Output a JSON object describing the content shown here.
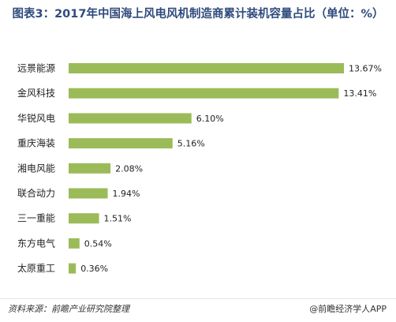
{
  "chart_data": {
    "type": "bar",
    "orientation": "horizontal",
    "title": "图表3：2017年中国海上风电风机制造商累计装机容量占比（单位：%）",
    "categories": [
      "远景能源",
      "金风科技",
      "华锐风电",
      "重庆海装",
      "湘电风能",
      "联合动力",
      "三一重能",
      "东方电气",
      "太原重工"
    ],
    "values": [
      13.67,
      13.41,
      6.1,
      5.16,
      2.08,
      1.94,
      1.51,
      0.54,
      0.36
    ],
    "value_labels": [
      "13.67%",
      "13.41%",
      "6.10%",
      "5.16%",
      "2.08%",
      "1.94%",
      "1.51%",
      "0.54%",
      "0.36%"
    ],
    "xlabel": "",
    "ylabel": "",
    "xlim": [
      0,
      13.67
    ],
    "grid": false,
    "legend": "none",
    "bar_color": "#9bbb59"
  },
  "footer": {
    "source": "资料来源：前瞻产业研究院整理",
    "brand": "@前瞻经济学人APP"
  }
}
